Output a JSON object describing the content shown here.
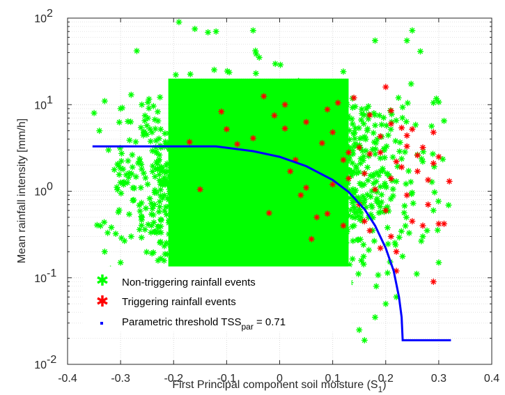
{
  "chart_data": {
    "type": "scatter",
    "xlabel": "First Principal component soil moisture (S",
    "xlabel_sub": "1",
    "xlabel_end": ")",
    "ylabel": "Mean rainfall intensity [mm/h]",
    "xlim": [
      -0.4,
      0.4
    ],
    "ylim": [
      0.01,
      100
    ],
    "y_scale": "log",
    "grid": true,
    "minor_grid": true,
    "x_ticks": [
      "-0.4",
      "-0.3",
      "-0.2",
      "-0.1",
      "0",
      "0.1",
      "0.2",
      "0.3",
      "0.4"
    ],
    "y_ticks": [
      {
        "base": "10",
        "exp": "-2"
      },
      {
        "base": "10",
        "exp": "-1"
      },
      {
        "base": "10",
        "exp": "0"
      },
      {
        "base": "10",
        "exp": "1"
      },
      {
        "base": "10",
        "exp": "2"
      }
    ],
    "legend": {
      "placement": "bottom-left",
      "entries": [
        {
          "label": "Non-triggering rainfall events",
          "marker": "asterisk",
          "color": "#00ff00"
        },
        {
          "label": "Triggering rainfall events",
          "marker": "asterisk",
          "color": "#ff0000"
        },
        {
          "label": "Parametric threshold TSS",
          "label_sub": "par",
          "label_end": " = 0.71",
          "marker": "point",
          "color": "#0000ff"
        }
      ]
    },
    "series": [
      {
        "name": "Non-triggering rainfall events",
        "color": "#00ff00",
        "marker": "asterisk",
        "dense_cloud": {
          "x_range": [
            -0.35,
            0.32
          ],
          "y_range": [
            0.02,
            90
          ],
          "dense_core_x": [
            -0.21,
            0.13
          ],
          "dense_core_y": [
            0.09,
            20
          ]
        },
        "points": [
          [
            -0.19,
            90
          ],
          [
            -0.16,
            75
          ],
          [
            -0.12,
            70
          ],
          [
            -0.05,
            72
          ],
          [
            0.25,
            72
          ],
          [
            0.24,
            55
          ],
          [
            0.18,
            55
          ],
          [
            -0.35,
            8
          ],
          [
            -0.34,
            5
          ],
          [
            -0.33,
            11
          ],
          [
            -0.3,
            9
          ],
          [
            -0.28,
            13
          ],
          [
            -0.26,
            10
          ],
          [
            -0.35,
            0.11
          ],
          [
            -0.33,
            0.2
          ],
          [
            -0.3,
            0.15
          ],
          [
            -0.28,
            0.3
          ],
          [
            -0.26,
            0.5
          ],
          [
            -0.25,
            0.12
          ],
          [
            0.27,
            0.3
          ],
          [
            0.29,
            0.6
          ],
          [
            0.31,
            6.5
          ],
          [
            0.3,
            0.15
          ],
          [
            0.29,
            10.5
          ],
          [
            0.2,
            0.05
          ],
          [
            0.15,
            0.025
          ],
          [
            0.16,
            0.019
          ],
          [
            0.18,
            0.035
          ],
          [
            0.22,
            0.06
          ],
          [
            0.12,
            0.04
          ]
        ]
      },
      {
        "name": "Triggering rainfall events",
        "color": "#ff0000",
        "marker": "asterisk",
        "points": [
          [
            -0.17,
            3.7
          ],
          [
            -0.15,
            1.05
          ],
          [
            -0.11,
            8.3
          ],
          [
            -0.1,
            5.2
          ],
          [
            -0.08,
            3.5
          ],
          [
            -0.05,
            4.1
          ],
          [
            -0.02,
            0.56
          ],
          [
            -0.03,
            12.5
          ],
          [
            -0.01,
            7.5
          ],
          [
            0.01,
            5.3
          ],
          [
            0.01,
            10
          ],
          [
            0.02,
            1.7
          ],
          [
            0.03,
            2.3
          ],
          [
            0.04,
            0.9
          ],
          [
            0.05,
            6.3
          ],
          [
            0.05,
            1.1
          ],
          [
            0.06,
            0.28
          ],
          [
            0.07,
            0.5
          ],
          [
            0.08,
            3.6
          ],
          [
            0.09,
            0.55
          ],
          [
            0.09,
            8.8
          ],
          [
            0.1,
            4.8
          ],
          [
            0.1,
            1.2
          ],
          [
            0.11,
            10.5
          ],
          [
            0.12,
            0.4
          ],
          [
            0.12,
            2.3
          ],
          [
            0.13,
            2.8
          ],
          [
            0.13,
            1.4
          ],
          [
            0.14,
            12
          ],
          [
            0.15,
            0.7
          ],
          [
            0.15,
            3.2
          ],
          [
            0.16,
            1.6
          ],
          [
            0.16,
            0.45
          ],
          [
            0.17,
            2.7
          ],
          [
            0.17,
            7.6
          ],
          [
            0.17,
            0.35
          ],
          [
            0.18,
            1.05
          ],
          [
            0.19,
            4.3
          ],
          [
            0.19,
            0.22
          ],
          [
            0.2,
            0.6
          ],
          [
            0.2,
            16
          ],
          [
            0.21,
            1.4
          ],
          [
            0.21,
            8.5
          ],
          [
            0.21,
            0.3
          ],
          [
            0.22,
            2.2
          ],
          [
            0.22,
            0.12
          ],
          [
            0.23,
            5.4
          ],
          [
            0.23,
            1.9
          ],
          [
            0.24,
            3.3
          ],
          [
            0.24,
            0.9
          ],
          [
            0.25,
            0.45
          ],
          [
            0.25,
            5.2
          ],
          [
            0.26,
            1.7
          ],
          [
            0.26,
            2.6
          ],
          [
            0.27,
            0.4
          ],
          [
            0.27,
            3.2
          ],
          [
            0.28,
            1.35
          ],
          [
            0.28,
            0.7
          ],
          [
            0.29,
            4.8
          ],
          [
            0.29,
            0.09
          ],
          [
            0.29,
            2.1
          ],
          [
            0.3,
            0.42
          ],
          [
            0.3,
            2.5
          ],
          [
            0.31,
            0.42
          ],
          [
            0.32,
            1.3
          ],
          [
            0.21,
            6
          ],
          [
            0.24,
            4.4
          ],
          [
            0.22,
            0.2
          ],
          [
            0.19,
            2.8
          ]
        ]
      },
      {
        "name": "Parametric threshold TSS",
        "color": "#0000ff",
        "marker": "point",
        "line": [
          [
            -0.353,
            3.3
          ],
          [
            -0.12,
            3.3
          ],
          [
            -0.05,
            2.9
          ],
          [
            0.0,
            2.5
          ],
          [
            0.05,
            1.95
          ],
          [
            0.1,
            1.35
          ],
          [
            0.13,
            0.98
          ],
          [
            0.16,
            0.62
          ],
          [
            0.18,
            0.4
          ],
          [
            0.2,
            0.22
          ],
          [
            0.215,
            0.12
          ],
          [
            0.225,
            0.06
          ],
          [
            0.23,
            0.035
          ],
          [
            0.232,
            0.019
          ],
          [
            0.323,
            0.019
          ]
        ]
      }
    ]
  }
}
